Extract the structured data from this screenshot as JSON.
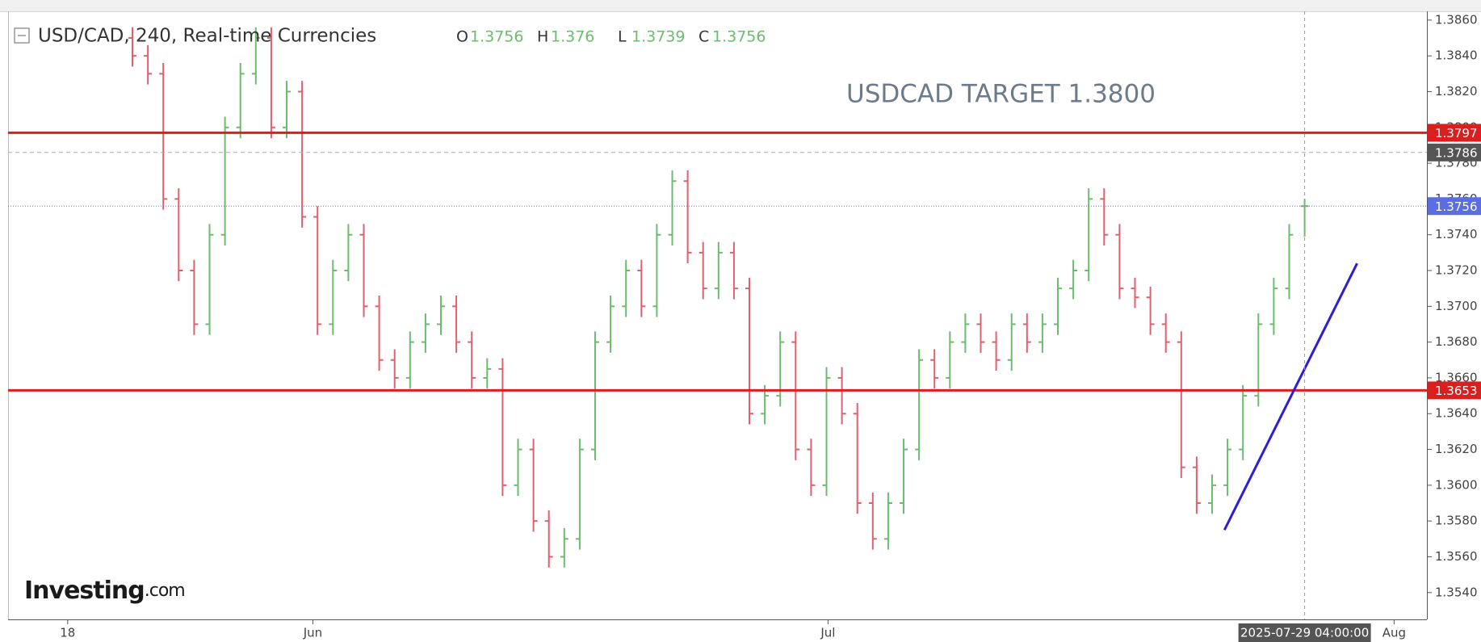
{
  "chart_data": {
    "type": "ohlc",
    "title": "USD/CAD, 240, Real-time Currencies",
    "ohlc_labels": [
      "O",
      "H",
      "L",
      "C"
    ],
    "annotation": "USDCAD TARGET 1.3800",
    "logo": "Investing",
    "logo_suffix": ".com",
    "crosshair_label": "2025-07-29 04:00:00",
    "up_color": "#6dbb6f",
    "down_color": "#e0606e",
    "ylim": [
      1.3525,
      1.3864
    ],
    "yticks": [
      {
        "value": 1.354,
        "label": "1.3540"
      },
      {
        "value": 1.356,
        "label": "1.3560"
      },
      {
        "value": 1.358,
        "label": "1.3580"
      },
      {
        "value": 1.36,
        "label": "1.3600"
      },
      {
        "value": 1.362,
        "label": "1.3620"
      },
      {
        "value": 1.364,
        "label": "1.3640"
      },
      {
        "value": 1.366,
        "label": "1.3660"
      },
      {
        "value": 1.368,
        "label": "1.3680"
      },
      {
        "value": 1.37,
        "label": "1.3700"
      },
      {
        "value": 1.372,
        "label": "1.3720"
      },
      {
        "value": 1.374,
        "label": "1.3740"
      },
      {
        "value": 1.376,
        "label": "1.3760"
      },
      {
        "value": 1.378,
        "label": "1.3780"
      },
      {
        "value": 1.38,
        "label": "1.3800"
      },
      {
        "value": 1.382,
        "label": "1.3820"
      },
      {
        "value": 1.384,
        "label": "1.3840"
      },
      {
        "value": 1.386,
        "label": "1.3860"
      }
    ],
    "xticks": [
      {
        "value": -4.2,
        "label": "18"
      },
      {
        "value": 11.7,
        "label": "Jun"
      },
      {
        "value": 45.1,
        "label": "Jul"
      },
      {
        "value": 81.8,
        "label": "Aug"
      }
    ],
    "price_lines": [
      {
        "value": 1.3797,
        "color": "#d9201f",
        "style": "solid"
      },
      {
        "value": 1.3786,
        "color": "#555555",
        "style": "dashed"
      },
      {
        "value": 1.3756,
        "color": "#5b6ee1",
        "style": "dotted"
      },
      {
        "value": 1.3653,
        "color": "#d9201f",
        "style": "solid"
      }
    ],
    "trendline": {
      "color": "#2b1fd6",
      "start": [
        70.8,
        1.3575
      ],
      "end": [
        79.4,
        1.3724
      ]
    },
    "bars": [
      [
        1.385,
        1.3856,
        1.3834,
        1.384
      ],
      [
        1.384,
        1.3846,
        1.3824,
        1.383
      ],
      [
        1.383,
        1.3836,
        1.3754,
        1.376
      ],
      [
        1.376,
        1.3766,
        1.3714,
        1.372
      ],
      [
        1.372,
        1.3726,
        1.3684,
        1.369
      ],
      [
        1.369,
        1.3746,
        1.3684,
        1.374
      ],
      [
        1.374,
        1.3806,
        1.3734,
        1.38
      ],
      [
        1.38,
        1.3836,
        1.3794,
        1.383
      ],
      [
        1.383,
        1.3856,
        1.3824,
        1.385
      ],
      [
        1.385,
        1.3856,
        1.3794,
        1.38
      ],
      [
        1.38,
        1.3826,
        1.3794,
        1.382
      ],
      [
        1.382,
        1.3826,
        1.3744,
        1.375
      ],
      [
        1.375,
        1.3756,
        1.3684,
        1.369
      ],
      [
        1.369,
        1.3726,
        1.3684,
        1.372
      ],
      [
        1.372,
        1.3746,
        1.3714,
        1.374
      ],
      [
        1.374,
        1.3746,
        1.3694,
        1.37
      ],
      [
        1.37,
        1.3706,
        1.3664,
        1.367
      ],
      [
        1.367,
        1.3676,
        1.3654,
        1.366
      ],
      [
        1.366,
        1.3686,
        1.3654,
        1.368
      ],
      [
        1.368,
        1.3696,
        1.3674,
        1.369
      ],
      [
        1.369,
        1.3706,
        1.3684,
        1.37
      ],
      [
        1.37,
        1.3706,
        1.3674,
        1.368
      ],
      [
        1.368,
        1.3686,
        1.3654,
        1.366
      ],
      [
        1.366,
        1.3671,
        1.3654,
        1.3665
      ],
      [
        1.3665,
        1.3671,
        1.3594,
        1.36
      ],
      [
        1.36,
        1.3626,
        1.3594,
        1.362
      ],
      [
        1.362,
        1.3626,
        1.3574,
        1.358
      ],
      [
        1.358,
        1.3586,
        1.3554,
        1.356
      ],
      [
        1.356,
        1.3576,
        1.3554,
        1.357
      ],
      [
        1.357,
        1.3626,
        1.3564,
        1.362
      ],
      [
        1.362,
        1.3686,
        1.3614,
        1.368
      ],
      [
        1.368,
        1.3706,
        1.3674,
        1.37
      ],
      [
        1.37,
        1.3726,
        1.3694,
        1.372
      ],
      [
        1.372,
        1.3726,
        1.3694,
        1.37
      ],
      [
        1.37,
        1.3746,
        1.3694,
        1.374
      ],
      [
        1.374,
        1.3776,
        1.3734,
        1.377
      ],
      [
        1.377,
        1.3776,
        1.3724,
        1.373
      ],
      [
        1.373,
        1.3736,
        1.3704,
        1.371
      ],
      [
        1.371,
        1.3736,
        1.3704,
        1.373
      ],
      [
        1.373,
        1.3736,
        1.3704,
        1.371
      ],
      [
        1.371,
        1.3716,
        1.3634,
        1.364
      ],
      [
        1.364,
        1.3656,
        1.3634,
        1.365
      ],
      [
        1.365,
        1.3686,
        1.3644,
        1.368
      ],
      [
        1.368,
        1.3686,
        1.3614,
        1.362
      ],
      [
        1.362,
        1.3626,
        1.3594,
        1.36
      ],
      [
        1.36,
        1.3666,
        1.3594,
        1.366
      ],
      [
        1.366,
        1.3666,
        1.3634,
        1.364
      ],
      [
        1.364,
        1.3646,
        1.3584,
        1.359
      ],
      [
        1.359,
        1.3596,
        1.3564,
        1.357
      ],
      [
        1.357,
        1.3596,
        1.3564,
        1.359
      ],
      [
        1.359,
        1.3626,
        1.3584,
        1.362
      ],
      [
        1.362,
        1.3676,
        1.3614,
        1.367
      ],
      [
        1.367,
        1.3676,
        1.3654,
        1.366
      ],
      [
        1.366,
        1.3686,
        1.3654,
        1.368
      ],
      [
        1.368,
        1.3696,
        1.3674,
        1.369
      ],
      [
        1.369,
        1.3696,
        1.3674,
        1.368
      ],
      [
        1.368,
        1.3686,
        1.3664,
        1.367
      ],
      [
        1.367,
        1.3696,
        1.3664,
        1.369
      ],
      [
        1.369,
        1.3696,
        1.3674,
        1.368
      ],
      [
        1.368,
        1.3696,
        1.3674,
        1.369
      ],
      [
        1.369,
        1.3716,
        1.3684,
        1.371
      ],
      [
        1.371,
        1.3726,
        1.3704,
        1.372
      ],
      [
        1.372,
        1.3766,
        1.3714,
        1.376
      ],
      [
        1.376,
        1.3766,
        1.3734,
        1.374
      ],
      [
        1.374,
        1.3746,
        1.3704,
        1.371
      ],
      [
        1.371,
        1.3716,
        1.3699,
        1.3705
      ],
      [
        1.3705,
        1.3711,
        1.3684,
        1.369
      ],
      [
        1.369,
        1.3696,
        1.3674,
        1.368
      ],
      [
        1.368,
        1.3686,
        1.3604,
        1.361
      ],
      [
        1.361,
        1.3616,
        1.3584,
        1.359
      ],
      [
        1.359,
        1.3606,
        1.3584,
        1.36
      ],
      [
        1.36,
        1.3626,
        1.3594,
        1.362
      ],
      [
        1.362,
        1.3656,
        1.3614,
        1.365
      ],
      [
        1.365,
        1.3696,
        1.3644,
        1.369
      ],
      [
        1.369,
        1.3716,
        1.3684,
        1.371
      ],
      [
        1.371,
        1.3746,
        1.3704,
        1.374
      ],
      [
        1.3756,
        1.376,
        1.3739,
        1.3756
      ]
    ]
  }
}
